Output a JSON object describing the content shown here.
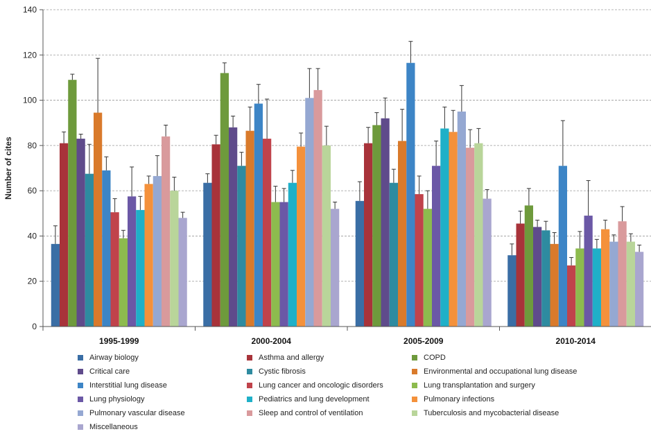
{
  "chart_data": {
    "type": "bar",
    "title": "",
    "xlabel": "",
    "ylabel": "Number of cites",
    "ylim": [
      0,
      140
    ],
    "yticks": [
      0,
      20,
      40,
      60,
      80,
      100,
      120,
      140
    ],
    "grid": true,
    "legend_position": "bottom",
    "categories": [
      "1995-1999",
      "2000-2004",
      "2005-2009",
      "2010-2014"
    ],
    "series": [
      {
        "name": "Airway biology",
        "color": "#3a6ea5",
        "values": [
          36.5,
          63.5,
          55.5,
          31.5
        ],
        "errors": [
          8,
          4,
          8.5,
          5
        ]
      },
      {
        "name": "Asthma and allergy",
        "color": "#a8333a",
        "values": [
          81,
          80.5,
          81,
          45.5
        ],
        "errors": [
          5,
          4,
          7,
          5.5
        ]
      },
      {
        "name": "COPD",
        "color": "#6e9a3c",
        "values": [
          109,
          112,
          89,
          53.5
        ],
        "errors": [
          2.5,
          4.5,
          5.5,
          7.5
        ]
      },
      {
        "name": "Critical care",
        "color": "#5f4b8b",
        "values": [
          83,
          88,
          92,
          44
        ],
        "errors": [
          2,
          5,
          9,
          3
        ]
      },
      {
        "name": "Cystic fibrosis",
        "color": "#2e8ba0",
        "values": [
          67.5,
          71,
          63.5,
          42.5
        ],
        "errors": [
          13,
          6,
          6,
          4
        ]
      },
      {
        "name": "Environmental and occupational lung disease",
        "color": "#d97a2b",
        "values": [
          94.5,
          86.5,
          82,
          36.5
        ],
        "errors": [
          24,
          10.5,
          14,
          5
        ]
      },
      {
        "name": "Interstitial lung disease",
        "color": "#3d85c6",
        "values": [
          69,
          98.5,
          116.5,
          71
        ],
        "errors": [
          6,
          8.5,
          9.5,
          20
        ]
      },
      {
        "name": "Lung cancer and oncologic disorders",
        "color": "#c0434b",
        "values": [
          50.5,
          83,
          58.5,
          27
        ],
        "errors": [
          6,
          17.5,
          8,
          3.5
        ]
      },
      {
        "name": "Lung transplantation and surgery",
        "color": "#8dbb4e",
        "values": [
          39,
          55,
          52,
          34.5
        ],
        "errors": [
          3.5,
          7,
          8,
          7.5
        ]
      },
      {
        "name": "Lung physiology",
        "color": "#6b58a6",
        "values": [
          57.5,
          55,
          71,
          49
        ],
        "errors": [
          13,
          6,
          11,
          15.5
        ]
      },
      {
        "name": "Pediatrics and lung development",
        "color": "#1fb0c8",
        "values": [
          51.5,
          63.5,
          87.5,
          34.5
        ],
        "errors": [
          6,
          5.5,
          9.5,
          4
        ]
      },
      {
        "name": "Pulmonary infections",
        "color": "#f4913b",
        "values": [
          63,
          79.5,
          86,
          43
        ],
        "errors": [
          3.5,
          6,
          9.5,
          4
        ]
      },
      {
        "name": "Pulmonary vascular disease",
        "color": "#95a8d2",
        "values": [
          66.5,
          101,
          95,
          37.5
        ],
        "errors": [
          9,
          13,
          11.5,
          3
        ]
      },
      {
        "name": "Sleep and control of ventilation",
        "color": "#d99a9c",
        "values": [
          84,
          104.5,
          79,
          46.5
        ],
        "errors": [
          5,
          9.5,
          8,
          6.5
        ]
      },
      {
        "name": "Tuberculosis and mycobacterial disease",
        "color": "#b9d59a",
        "values": [
          60,
          80,
          81,
          37.5
        ],
        "errors": [
          6,
          8.5,
          6.5,
          3.5
        ]
      },
      {
        "name": "Miscellaneous",
        "color": "#a9a6cf",
        "values": [
          48,
          52,
          56.5,
          33
        ],
        "errors": [
          2.5,
          3,
          4,
          3
        ]
      }
    ]
  }
}
